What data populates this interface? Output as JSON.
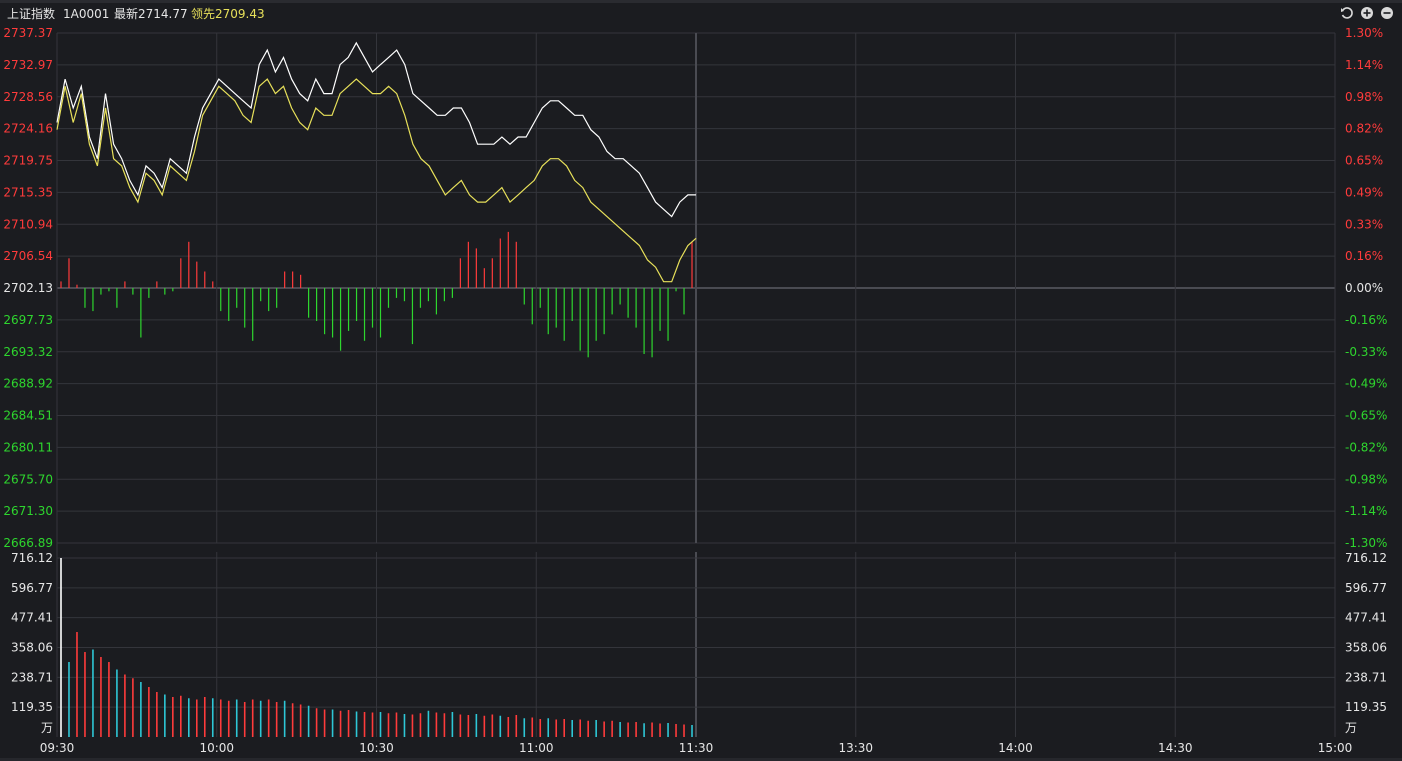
{
  "header": {
    "name": "上证指数",
    "code": "1A0001",
    "last": "最新2714.77",
    "lead": "领先2709.43"
  },
  "controls": {
    "refresh": "refresh-icon",
    "zoom_in": "plus-circle-icon",
    "zoom_out": "minus-circle-icon"
  },
  "colors": {
    "background": "#1b1c20",
    "grid": "#34353b",
    "price_line": "#ffffff",
    "lead_line": "#e7e05a",
    "up": "#ff3b3b",
    "down": "#2ed62e",
    "volume_up": "#ff3b3b",
    "volume_down": "#2ec7d6",
    "axis_text_neutral": "#e6e6e6"
  },
  "chart_data": {
    "type": "line",
    "title": "",
    "prev_close": 2702.13,
    "price_axis": {
      "ylim": [
        2666.89,
        2737.37
      ],
      "left_ticks": [
        "2737.37",
        "2732.97",
        "2728.56",
        "2724.16",
        "2719.75",
        "2715.35",
        "2710.94",
        "2706.54",
        "2702.13",
        "2697.73",
        "2693.32",
        "2688.92",
        "2684.51",
        "2680.11",
        "2675.70",
        "2671.30",
        "2666.89"
      ],
      "right_ticks": [
        "1.30%",
        "1.14%",
        "0.98%",
        "0.82%",
        "0.65%",
        "0.49%",
        "0.33%",
        "0.16%",
        "0.00%",
        "-0.16%",
        "-0.33%",
        "-0.49%",
        "-0.65%",
        "-0.82%",
        "-0.98%",
        "-1.14%",
        "-1.30%"
      ]
    },
    "x_ticks": [
      "09:30",
      "10:00",
      "10:30",
      "11:00",
      "11:30",
      "13:30",
      "14:00",
      "14:30",
      "15:00"
    ],
    "series": [
      {
        "key": "last",
        "values": [
          2725,
          2731,
          2727,
          2730,
          2723,
          2720,
          2729,
          2722,
          2720,
          2717,
          2715,
          2719,
          2718,
          2716,
          2720,
          2719,
          2718,
          2723,
          2727,
          2729,
          2731,
          2730,
          2729,
          2728,
          2727,
          2733,
          2735,
          2732,
          2734,
          2731,
          2729,
          2728,
          2731,
          2729,
          2729,
          2733,
          2734,
          2736,
          2734,
          2732,
          2733,
          2734,
          2735,
          2733,
          2729,
          2728,
          2727,
          2726,
          2726,
          2727,
          2727,
          2725,
          2722,
          2722,
          2722,
          2723,
          2722,
          2723,
          2723,
          2725,
          2727,
          2728,
          2728,
          2727,
          2726,
          2726,
          2724,
          2723,
          2721,
          2720,
          2720,
          2719,
          2718,
          2716,
          2714,
          2713,
          2712,
          2714,
          2715,
          2715
        ],
        "x_minutes": "minute index from 09:30, 0-120"
      },
      {
        "key": "lead",
        "values": [
          2724,
          2730,
          2725,
          2729,
          2722,
          2719,
          2727,
          2720,
          2719,
          2716,
          2714,
          2718,
          2717,
          2715,
          2719,
          2718,
          2717,
          2721,
          2726,
          2728,
          2730,
          2729,
          2728,
          2726,
          2725,
          2730,
          2731,
          2729,
          2730,
          2727,
          2725,
          2724,
          2727,
          2726,
          2726,
          2729,
          2730,
          2731,
          2730,
          2729,
          2729,
          2730,
          2729,
          2726,
          2722,
          2720,
          2719,
          2717,
          2715,
          2716,
          2717,
          2715,
          2714,
          2714,
          2715,
          2716,
          2714,
          2715,
          2716,
          2717,
          2719,
          2720,
          2720,
          2719,
          2717,
          2716,
          2714,
          2713,
          2712,
          2711,
          2710,
          2709,
          2708,
          2706,
          2705,
          2703,
          2703,
          2706,
          2708,
          2709
        ]
      }
    ],
    "diff_bars": [
      2,
      9,
      1,
      -6,
      -7,
      -2,
      -1,
      -6,
      2,
      -2,
      -15,
      -3,
      2,
      -2,
      -1,
      9,
      14,
      8,
      5,
      2,
      -7,
      -10,
      -6,
      -12,
      -16,
      -4,
      -7,
      -6,
      5,
      5,
      4,
      -9,
      -10,
      -14,
      -15,
      -19,
      -13,
      -10,
      -16,
      -12,
      -15,
      -6,
      -3,
      -4,
      -17,
      -6,
      -4,
      -8,
      -4,
      -3,
      9,
      14,
      12,
      6,
      9,
      15,
      17,
      14,
      -5,
      -11,
      -6,
      -14,
      -12,
      -16,
      -10,
      -19,
      -21,
      -16,
      -14,
      -8,
      -5,
      -9,
      -12,
      -20,
      -21,
      -13,
      -16,
      -1,
      -8,
      14
    ],
    "volume": {
      "ylim": [
        0,
        716.12
      ],
      "ticks": [
        "716.12",
        "596.77",
        "477.41",
        "358.06",
        "238.71",
        "119.35"
      ],
      "unit": "万",
      "values": [
        716,
        300,
        420,
        340,
        350,
        320,
        300,
        270,
        250,
        235,
        220,
        200,
        180,
        170,
        160,
        165,
        155,
        150,
        160,
        155,
        150,
        145,
        150,
        140,
        150,
        145,
        150,
        140,
        145,
        135,
        130,
        125,
        115,
        110,
        110,
        105,
        108,
        102,
        100,
        98,
        100,
        95,
        98,
        92,
        90,
        95,
        105,
        98,
        95,
        100,
        90,
        88,
        92,
        85,
        90,
        85,
        80,
        88,
        75,
        78,
        72,
        75,
        70,
        72,
        68,
        70,
        65,
        68,
        62,
        65,
        60,
        58,
        60,
        55,
        58,
        54,
        56,
        52,
        50,
        48
      ]
    }
  }
}
